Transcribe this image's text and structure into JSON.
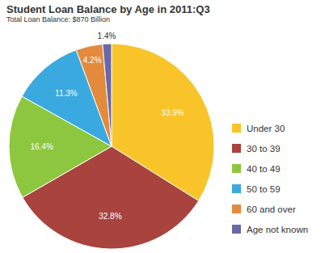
{
  "chart_data": {
    "type": "pie",
    "title": "Student Loan Balance by Age in 2011:Q3",
    "subtitle": "Total Loan Balance: $870 Billion",
    "categories": [
      "Under 30",
      "30 to 39",
      "40 to 49",
      "50 to 59",
      "60 and over",
      "Age not known"
    ],
    "values": [
      33.9,
      32.8,
      16.4,
      11.3,
      4.2,
      1.4
    ],
    "value_labels": [
      "33.9%",
      "32.8%",
      "16.4%",
      "11.3%",
      "4.2%",
      "1.4%"
    ],
    "colors": [
      "#f8c42a",
      "#a8433d",
      "#8dc73f",
      "#3aa9df",
      "#e38a3c",
      "#6a68a8"
    ],
    "data_labels": true,
    "legend": "right"
  }
}
